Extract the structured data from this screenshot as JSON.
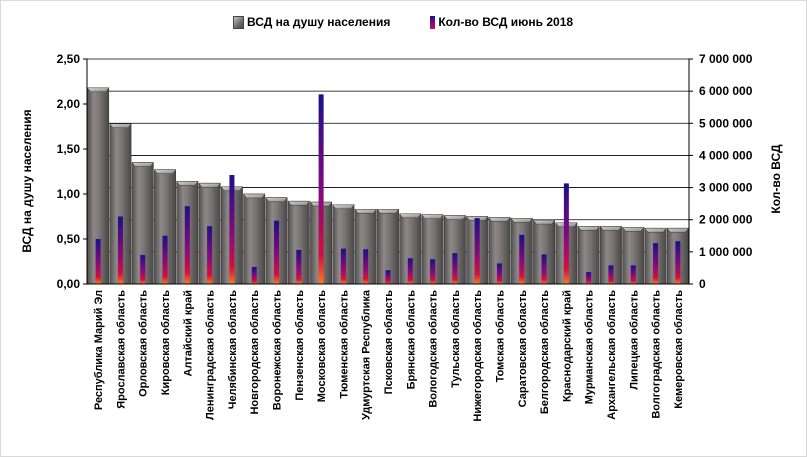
{
  "chart_data": {
    "type": "bar",
    "legend": {
      "placement": "top",
      "entries": [
        "ВСД на душу населения",
        "Кол-во ВСД июнь  2018"
      ]
    },
    "ylabel_left": "ВСД  на душу населения",
    "ylabel_right": "Кол-во ВСД",
    "ylim_left": [
      0,
      2.5
    ],
    "ylim_right": [
      0,
      7000000
    ],
    "yticks_left": [
      "0,00",
      "0,50",
      "1,00",
      "1,50",
      "2,00",
      "2,50"
    ],
    "yticks_right": [
      "0",
      "1 000 000",
      "2 000 000",
      "3 000 000",
      "4 000 000",
      "5 000 000",
      "6 000 000",
      "7 000 000"
    ],
    "grid": "horizontal",
    "categories": [
      "Республика  Марий Эл",
      "Ярославская область",
      "Орловская область",
      "Кировская область",
      "Алтайский край",
      "Ленинградская область",
      "Челябинская область",
      "Новгородская область",
      "Воронежская область",
      "Пензенская область",
      "Московская область",
      "Тюменская область",
      "Удмуртская Республика",
      "Псковская область",
      "Брянская область",
      "Вологодская область",
      "Тульская область",
      "Нижегородская область",
      "Томская область",
      "Саратовская область",
      "Белгородская область",
      "Краснодарский край",
      "Мурманская область",
      "Архангельская область",
      "Липецкая область",
      "Волгоградская область",
      "Кемеровская область"
    ],
    "series": [
      {
        "name": "ВСД на душу населения",
        "axis": "left",
        "color": "#7a7676",
        "values": [
          2.18,
          1.78,
          1.35,
          1.27,
          1.14,
          1.12,
          1.08,
          1.0,
          0.96,
          0.92,
          0.91,
          0.88,
          0.83,
          0.83,
          0.78,
          0.77,
          0.76,
          0.75,
          0.74,
          0.73,
          0.71,
          0.68,
          0.64,
          0.64,
          0.63,
          0.62,
          0.62
        ]
      },
      {
        "name": "Кол-во ВСД июнь  2018",
        "axis": "right",
        "color": "#1d0f8a",
        "values": [
          1400000,
          2100000,
          900000,
          1500000,
          2420000,
          1800000,
          3390000,
          530000,
          1970000,
          1060000,
          5900000,
          1100000,
          1080000,
          430000,
          800000,
          770000,
          960000,
          2050000,
          640000,
          1530000,
          920000,
          3130000,
          370000,
          580000,
          580000,
          1270000,
          1330000
        ]
      }
    ]
  }
}
